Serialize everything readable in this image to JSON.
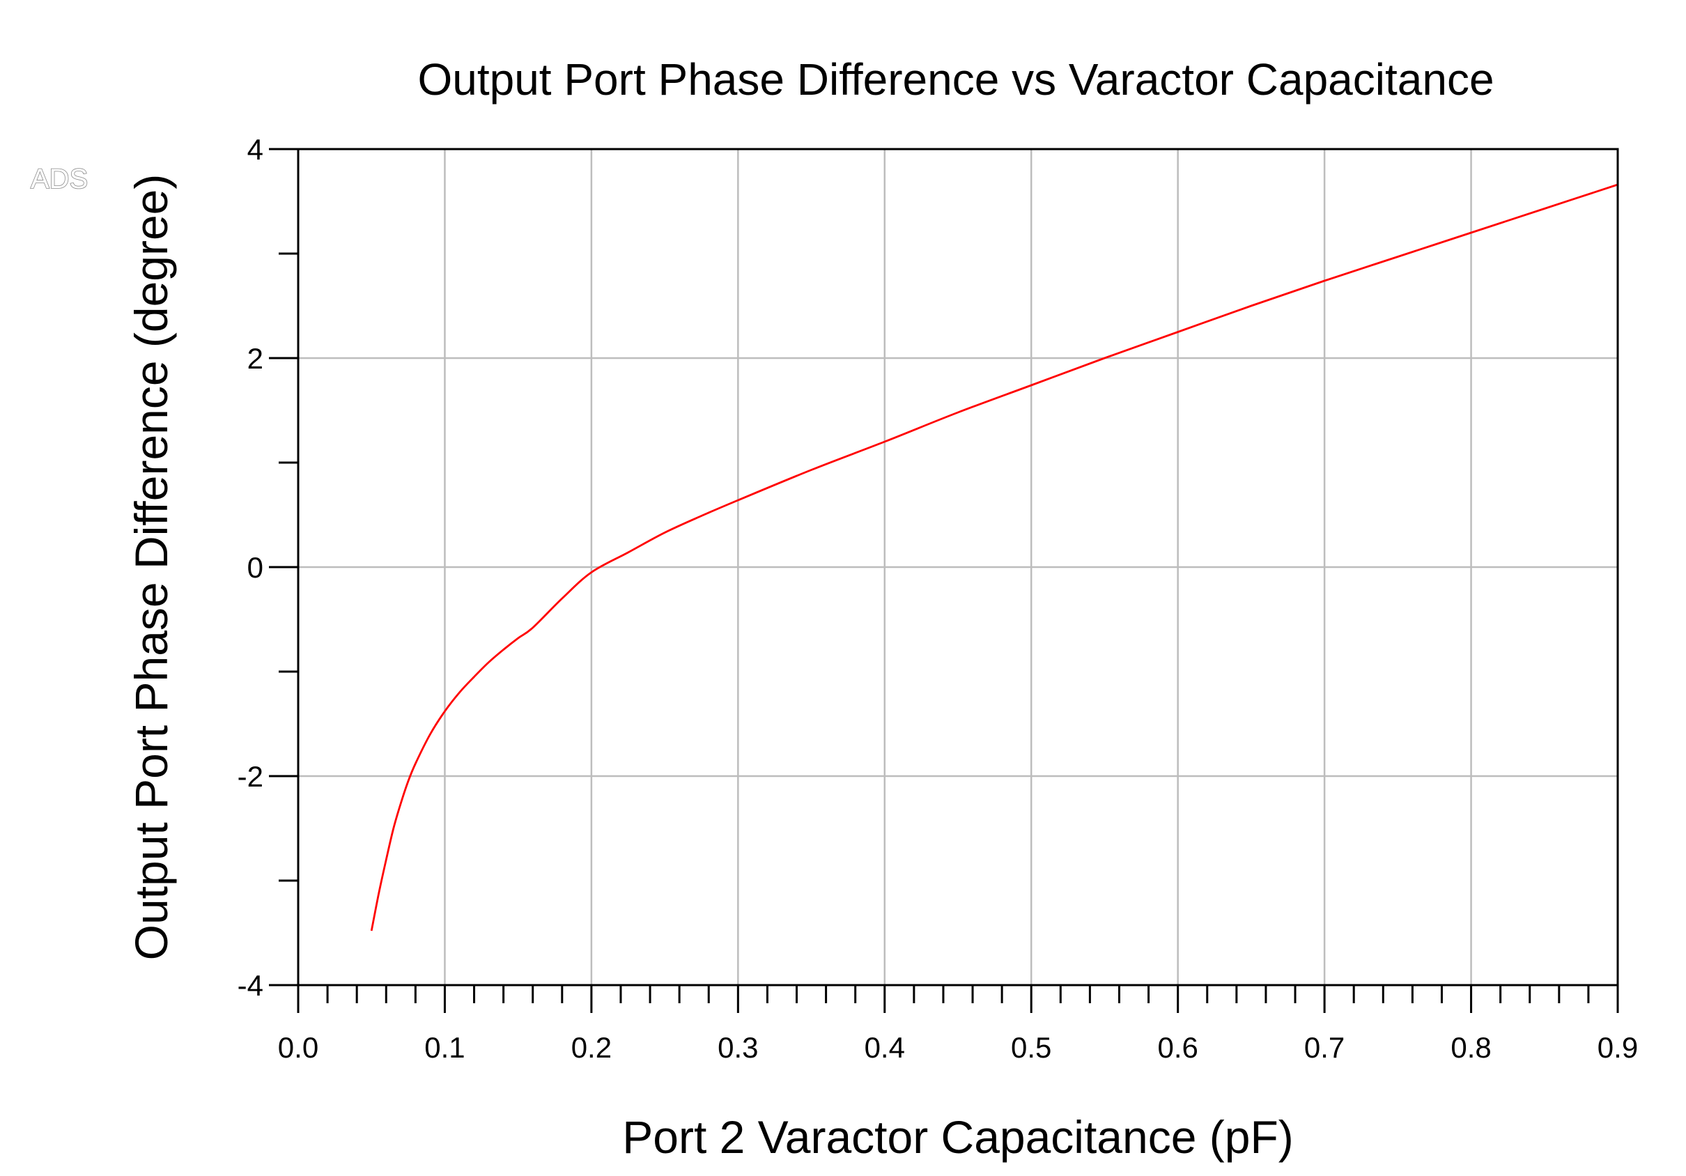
{
  "watermark": "ADS",
  "chart_data": {
    "type": "line",
    "title": "Output Port Phase Difference vs Varactor Capacitance",
    "xlabel": "Port 2 Varactor Capacitance (pF)",
    "ylabel": "Output Port Phase Difference (degree)",
    "xlim": [
      0.0,
      0.9
    ],
    "ylim": [
      -4,
      4
    ],
    "x_ticks": [
      0.0,
      0.1,
      0.2,
      0.3,
      0.4,
      0.5,
      0.6,
      0.7,
      0.8,
      0.9
    ],
    "x_tick_labels": [
      "0.0",
      "0.1",
      "0.2",
      "0.3",
      "0.4",
      "0.5",
      "0.6",
      "0.7",
      "0.8",
      "0.9"
    ],
    "x_minor_step": 0.02,
    "y_ticks": [
      -4,
      -2,
      0,
      2,
      4
    ],
    "y_tick_labels": [
      "-4",
      "-2",
      "0",
      "2",
      "4"
    ],
    "y_minor_step": 1,
    "grid": true,
    "legend": "none",
    "series": [
      {
        "color": "#ff0000",
        "x": [
          0.05,
          0.055,
          0.06,
          0.065,
          0.07,
          0.075,
          0.08,
          0.09,
          0.1,
          0.11,
          0.12,
          0.13,
          0.14,
          0.15,
          0.16,
          0.18,
          0.2,
          0.225,
          0.25,
          0.275,
          0.3,
          0.35,
          0.4,
          0.45,
          0.5,
          0.55,
          0.6,
          0.65,
          0.7,
          0.75,
          0.8,
          0.85,
          0.9
        ],
        "y": [
          -3.48,
          -3.12,
          -2.8,
          -2.5,
          -2.26,
          -2.05,
          -1.88,
          -1.6,
          -1.38,
          -1.2,
          -1.05,
          -0.91,
          -0.79,
          -0.68,
          -0.58,
          -0.3,
          -0.05,
          0.14,
          0.33,
          0.49,
          0.64,
          0.93,
          1.2,
          1.48,
          1.74,
          2.0,
          2.25,
          2.5,
          2.74,
          2.97,
          3.2,
          3.43,
          3.66
        ]
      }
    ]
  }
}
